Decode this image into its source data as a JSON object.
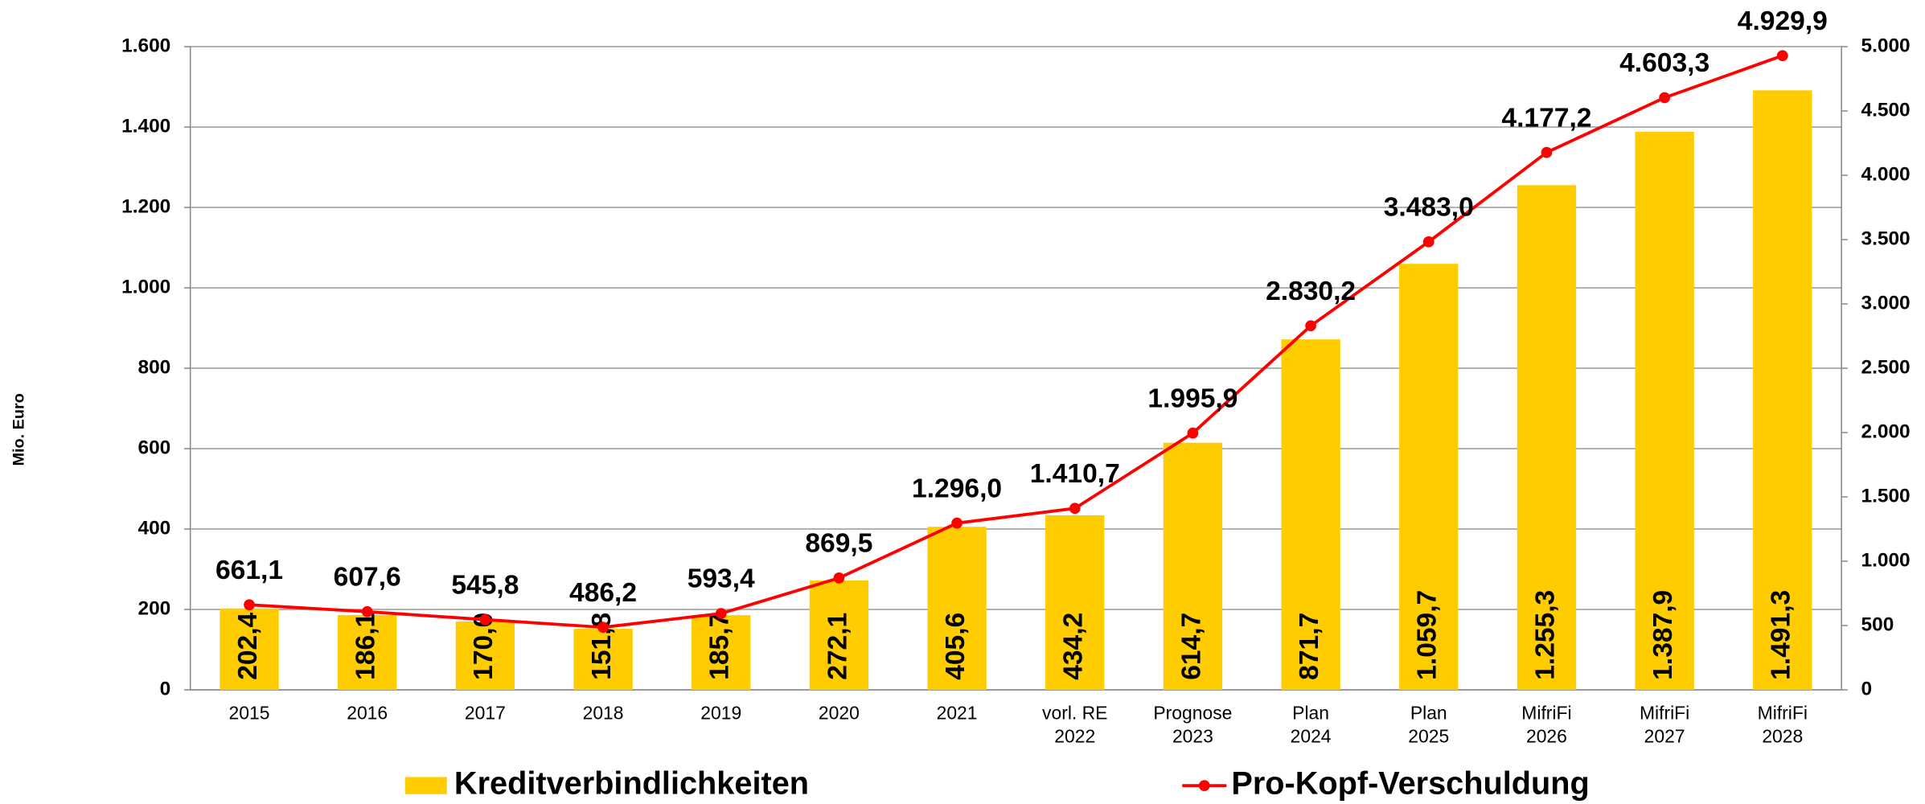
{
  "chart_data": {
    "type": "bar_line",
    "y_label": "Mio. Euro",
    "categories": [
      [
        "2015"
      ],
      [
        "2016"
      ],
      [
        "2017"
      ],
      [
        "2018"
      ],
      [
        "2019"
      ],
      [
        "2020"
      ],
      [
        "2021"
      ],
      [
        "vorl. RE",
        "2022"
      ],
      [
        "Prognose",
        "2023"
      ],
      [
        "Plan",
        "2024"
      ],
      [
        "Plan",
        "2025"
      ],
      [
        "MifriFi",
        "2026"
      ],
      [
        "MifriFi",
        "2027"
      ],
      [
        "MifriFi",
        "2028"
      ]
    ],
    "series": [
      {
        "name": "Kreditverbindlichkeiten",
        "type": "bar",
        "color": "#ffcc00",
        "values": [
          202.4,
          186.1,
          170.0,
          151.8,
          185.7,
          272.1,
          405.6,
          434.2,
          614.7,
          871.7,
          1059.7,
          1255.3,
          1387.9,
          1491.3
        ],
        "value_labels": [
          "202,4",
          "186,1",
          "170,0",
          "151,8",
          "185,7",
          "272,1",
          "405,6",
          "434,2",
          "614,7",
          "871,7",
          "1.059,7",
          "1.255,3",
          "1.387,9",
          "1.491,3"
        ]
      },
      {
        "name": "Pro-Kopf-Verschuldung",
        "type": "line",
        "axis": "y2",
        "color": "#ff0000",
        "values": [
          661.1,
          607.6,
          545.8,
          486.2,
          593.4,
          869.5,
          1296.0,
          1410.7,
          1995.9,
          2830.2,
          3483.0,
          4177.2,
          4603.3,
          4929.9
        ],
        "value_labels": [
          "661,1",
          "607,6",
          "545,8",
          "486,2",
          "593,4",
          "869,5",
          "1.296,0",
          "1.410,7",
          "1.995,9",
          "2.830,2",
          "3.483,0",
          "4.177,2",
          "4.603,3",
          "4.929,9"
        ]
      }
    ],
    "ylim": [
      0,
      1600
    ],
    "yticks": [
      0,
      200,
      400,
      600,
      800,
      {
        "value": 1000,
        "label": "1.000"
      },
      {
        "value": 1200,
        "label": "1.200"
      },
      {
        "value": 1400,
        "label": "1.400"
      },
      {
        "value": 1600,
        "label": "1.600"
      }
    ],
    "y2lim": [
      0,
      5000
    ],
    "y2ticks": [
      0,
      500,
      {
        "value": 1000,
        "label": "1.000"
      },
      {
        "value": 1500,
        "label": "1.500"
      },
      {
        "value": 2000,
        "label": "2.000"
      },
      {
        "value": 2500,
        "label": "2.500"
      },
      {
        "value": 3000,
        "label": "3.000"
      },
      {
        "value": 3500,
        "label": "3.500"
      },
      {
        "value": 4000,
        "label": "4.000"
      },
      {
        "value": 4500,
        "label": "4.500"
      },
      {
        "value": 5000,
        "label": "5.000"
      }
    ],
    "grid": true,
    "legend": "bottom"
  }
}
